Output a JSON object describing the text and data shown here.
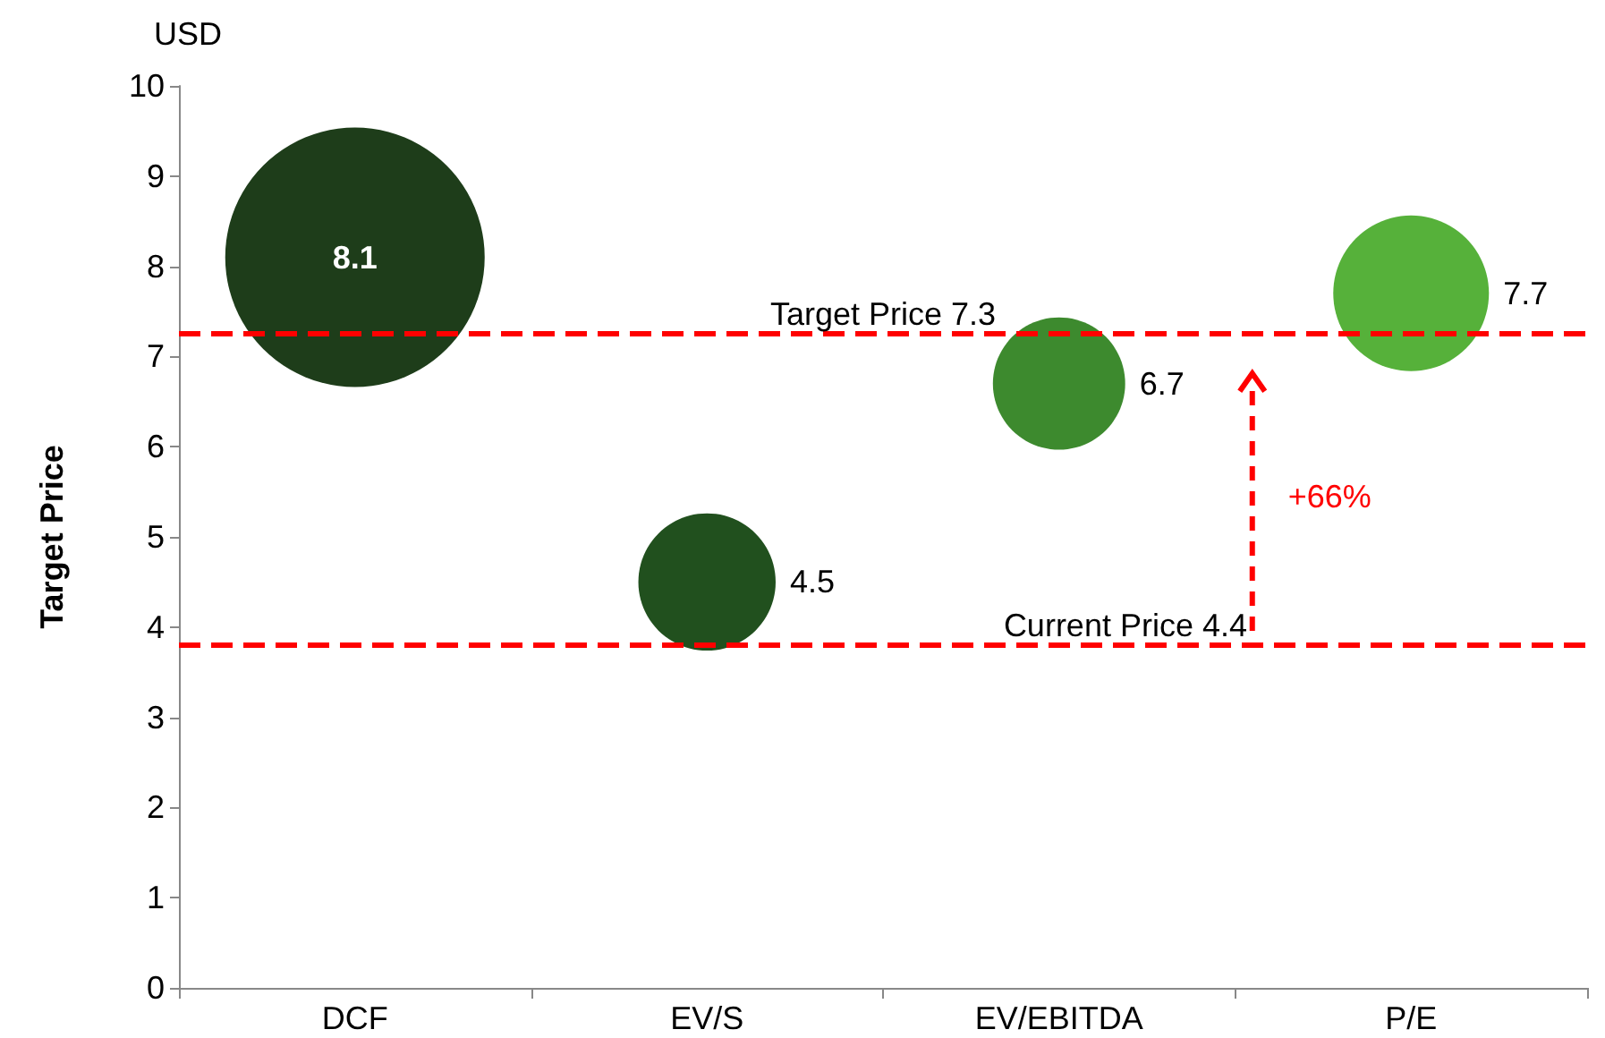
{
  "chart_data": {
    "type": "bubble",
    "ylabel": "Target Price",
    "categories": [
      "DCF",
      "EV/S",
      "EV/EBITDA",
      "P/E"
    ],
    "values": [
      8.1,
      4.5,
      6.7,
      7.7
    ],
    "sizes": [
      1,
      0.28,
      0.26,
      0.36
    ],
    "colors": [
      "#1e3d1a",
      "#21501e",
      "#3d8a2e",
      "#56b13a"
    ],
    "ylim": [
      0,
      10
    ],
    "yticks": [
      0,
      1,
      2,
      3,
      4,
      5,
      6,
      7,
      8,
      9,
      10
    ],
    "data_labels": true,
    "grid": false,
    "marker": "circle",
    "ref_lines": [
      {
        "axis": "y",
        "value": 7.25,
        "label": "Target Price 7.3",
        "color": "#ff0000",
        "line_style": "dashed"
      },
      {
        "axis": "y",
        "value": 3.8,
        "label": "Current Price 4.4",
        "color": "#ff0000",
        "line_style": "dashed"
      }
    ],
    "annotations": [
      "USD",
      "+66%"
    ]
  }
}
